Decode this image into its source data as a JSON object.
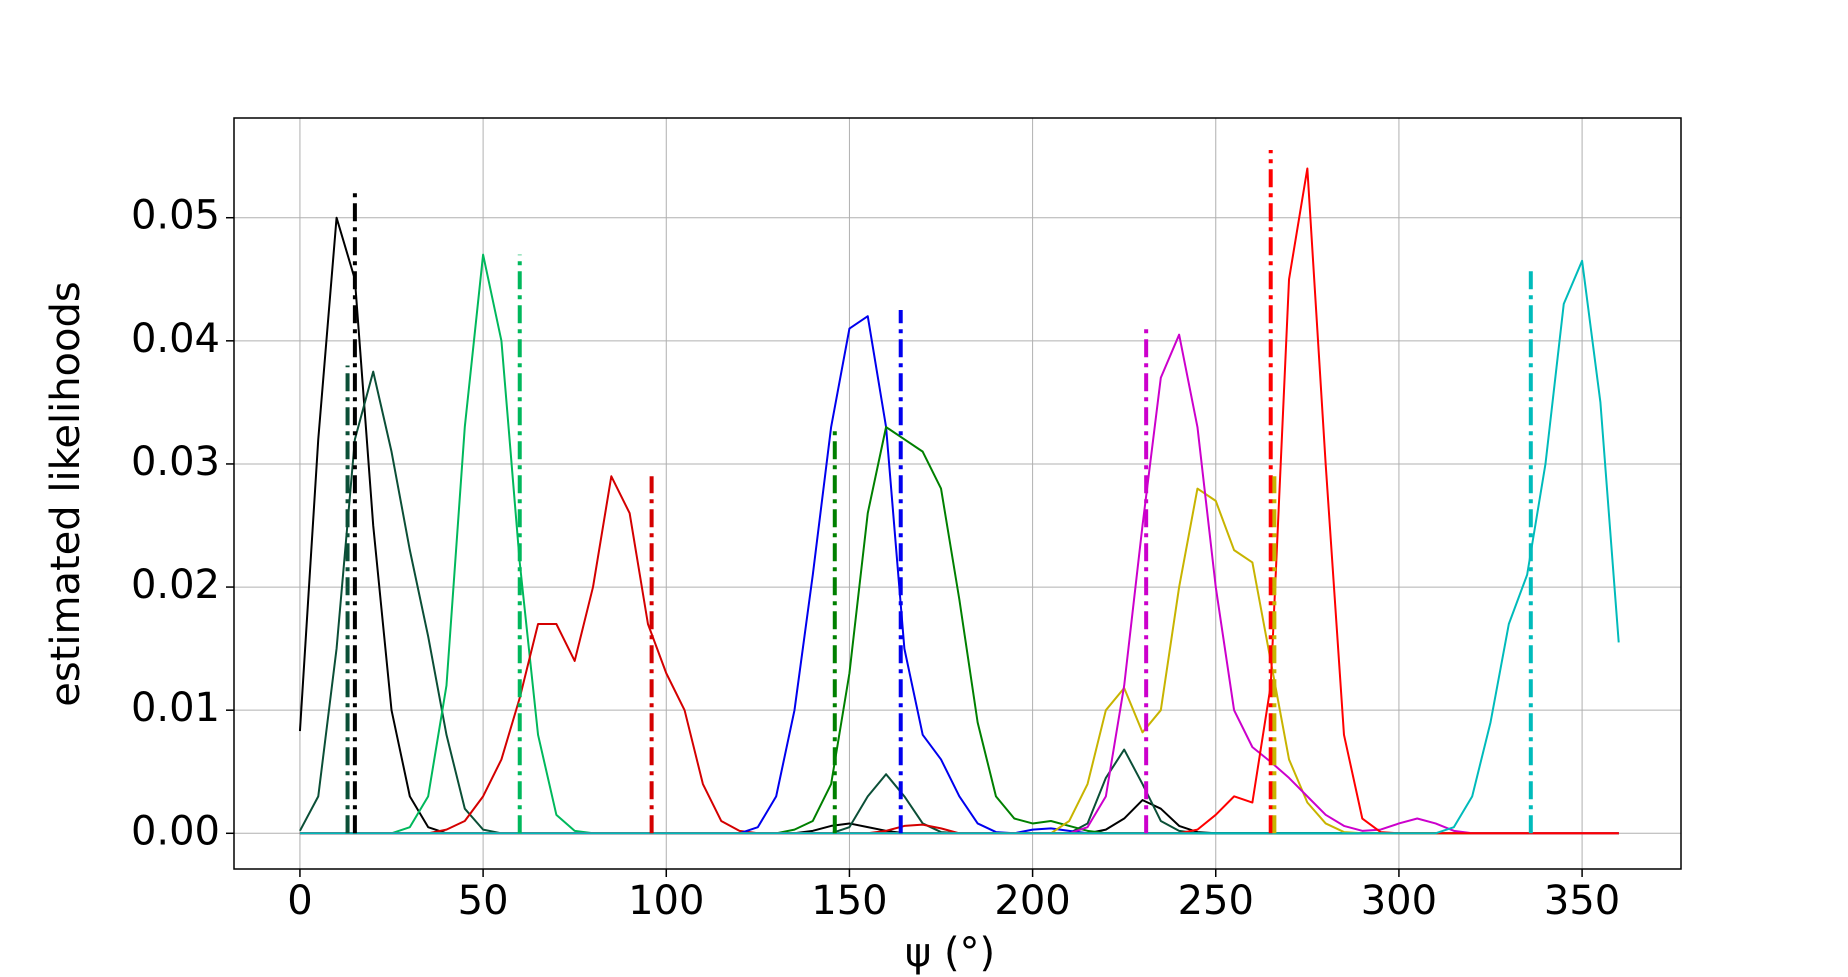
{
  "chart_data": {
    "type": "line",
    "xlabel": "ψ (°)",
    "ylabel": "estimated likelihoods",
    "xlim": [
      -18,
      377
    ],
    "ylim": [
      -0.0029,
      0.0581
    ],
    "xticks": [
      0,
      50,
      100,
      150,
      200,
      250,
      300,
      350
    ],
    "yticks": [
      {
        "value": 0,
        "label": "0.00"
      },
      0.01,
      0.02,
      0.03,
      0.04,
      0.05
    ],
    "grid": true,
    "x": [
      0,
      5,
      10,
      15,
      20,
      25,
      30,
      35,
      40,
      45,
      50,
      55,
      60,
      65,
      70,
      75,
      80,
      85,
      90,
      95,
      100,
      105,
      110,
      115,
      120,
      125,
      130,
      135,
      140,
      145,
      150,
      155,
      160,
      165,
      170,
      175,
      180,
      185,
      190,
      195,
      200,
      205,
      210,
      215,
      220,
      225,
      230,
      235,
      240,
      245,
      250,
      255,
      260,
      265,
      270,
      275,
      280,
      285,
      290,
      295,
      300,
      305,
      310,
      315,
      320,
      325,
      330,
      335,
      340,
      345,
      350,
      355,
      360
    ],
    "series": [
      {
        "color": "#000000",
        "values": [
          0.0083,
          0.032,
          0.05,
          0.045,
          0.025,
          0.01,
          0.003,
          0.0005,
          0,
          0,
          0,
          0,
          0,
          0,
          0,
          0,
          0,
          0,
          0,
          0,
          0,
          0,
          0,
          0,
          0,
          0,
          0,
          0,
          0.0002,
          0.0006,
          0.0008,
          0.0005,
          0.0002,
          0,
          0,
          0,
          0,
          0,
          0,
          0,
          0,
          0,
          0,
          0,
          0.0003,
          0.0012,
          0.0027,
          0.002,
          0.0006,
          0.0001,
          0,
          0,
          0,
          0,
          0,
          0,
          0,
          0,
          0,
          0,
          0,
          0,
          0,
          0,
          0,
          0,
          0,
          0,
          0,
          0,
          0,
          0,
          0
        ]
      },
      {
        "color": "#0b4f37",
        "values": [
          0.0002,
          0.003,
          0.015,
          0.032,
          0.0375,
          0.031,
          0.023,
          0.016,
          0.008,
          0.002,
          0.0003,
          0,
          0,
          0,
          0,
          0,
          0,
          0,
          0,
          0,
          0,
          0,
          0,
          0,
          0,
          0,
          0,
          0,
          0,
          0,
          0.0005,
          0.003,
          0.0048,
          0.003,
          0.0008,
          0.0001,
          0,
          0,
          0,
          0,
          0,
          0,
          0,
          0.0008,
          0.0045,
          0.0068,
          0.004,
          0.001,
          0.0002,
          0,
          0,
          0,
          0,
          0,
          0,
          0,
          0,
          0,
          0,
          0,
          0,
          0,
          0,
          0,
          0,
          0,
          0,
          0,
          0,
          0,
          0,
          0,
          0
        ]
      },
      {
        "color": "#00b85c",
        "values": [
          0,
          0,
          0,
          0,
          0,
          0,
          0.0005,
          0.003,
          0.012,
          0.033,
          0.047,
          0.04,
          0.022,
          0.008,
          0.0015,
          0.0002,
          0,
          0,
          0,
          0,
          0,
          0,
          0,
          0,
          0,
          0,
          0,
          0,
          0,
          0,
          0,
          0,
          0,
          0,
          0,
          0,
          0,
          0,
          0,
          0,
          0,
          0,
          0,
          0,
          0,
          0,
          0,
          0,
          0,
          0,
          0,
          0,
          0,
          0,
          0,
          0,
          0,
          0,
          0,
          0,
          0,
          0,
          0,
          0,
          0,
          0,
          0,
          0,
          0,
          0,
          0,
          0,
          0
        ]
      },
      {
        "color": "#d40000",
        "values": [
          0,
          0,
          0,
          0,
          0,
          0,
          0,
          0,
          0.0003,
          0.001,
          0.003,
          0.006,
          0.011,
          0.017,
          0.017,
          0.014,
          0.02,
          0.029,
          0.026,
          0.017,
          0.013,
          0.01,
          0.004,
          0.001,
          0.0002,
          0,
          0,
          0,
          0,
          0,
          0,
          0,
          0.0002,
          0.0006,
          0.0007,
          0.0004,
          0,
          0,
          0,
          0,
          0,
          0,
          0,
          0,
          0,
          0,
          0,
          0,
          0,
          0,
          0,
          0,
          0,
          0,
          0,
          0,
          0,
          0,
          0,
          0,
          0,
          0,
          0,
          0,
          0,
          0,
          0,
          0,
          0,
          0,
          0,
          0,
          0
        ]
      },
      {
        "color": "#0000ee",
        "values": [
          0,
          0,
          0,
          0,
          0,
          0,
          0,
          0,
          0,
          0,
          0,
          0,
          0,
          0,
          0,
          0,
          0,
          0,
          0,
          0,
          0,
          0,
          0,
          0,
          0,
          0.0005,
          0.003,
          0.01,
          0.021,
          0.033,
          0.041,
          0.042,
          0.033,
          0.015,
          0.008,
          0.006,
          0.003,
          0.0008,
          0.0001,
          0,
          0.0003,
          0.0004,
          0.0002,
          0,
          0,
          0,
          0,
          0,
          0,
          0,
          0,
          0,
          0,
          0,
          0,
          0,
          0,
          0,
          0,
          0,
          0,
          0,
          0,
          0,
          0,
          0,
          0,
          0,
          0,
          0,
          0,
          0,
          0
        ]
      },
      {
        "color": "#008000",
        "values": [
          0,
          0,
          0,
          0,
          0,
          0,
          0,
          0,
          0,
          0,
          0,
          0,
          0,
          0,
          0,
          0,
          0,
          0,
          0,
          0,
          0,
          0,
          0,
          0,
          0,
          0,
          0,
          0.0003,
          0.001,
          0.004,
          0.013,
          0.026,
          0.033,
          0.032,
          0.031,
          0.028,
          0.019,
          0.009,
          0.003,
          0.0012,
          0.0008,
          0.001,
          0.0006,
          0.0002,
          0,
          0,
          0,
          0,
          0,
          0,
          0,
          0,
          0,
          0,
          0,
          0,
          0,
          0,
          0,
          0,
          0,
          0,
          0,
          0,
          0,
          0,
          0,
          0,
          0,
          0,
          0,
          0,
          0
        ]
      },
      {
        "color": "#c8b400",
        "values": [
          0,
          0,
          0,
          0,
          0,
          0,
          0,
          0,
          0,
          0,
          0,
          0,
          0,
          0,
          0,
          0,
          0,
          0,
          0,
          0,
          0,
          0,
          0,
          0,
          0,
          0,
          0,
          0,
          0,
          0,
          0,
          0,
          0,
          0,
          0,
          0,
          0,
          0,
          0,
          0,
          0,
          0,
          0.001,
          0.004,
          0.01,
          0.0118,
          0.0082,
          0.01,
          0.02,
          0.028,
          0.027,
          0.023,
          0.022,
          0.014,
          0.006,
          0.0025,
          0.0008,
          0.0001,
          0,
          0,
          0,
          0,
          0,
          0,
          0,
          0,
          0,
          0,
          0,
          0,
          0,
          0,
          0
        ]
      },
      {
        "color": "#cc00cc",
        "values": [
          0,
          0,
          0,
          0,
          0,
          0,
          0,
          0,
          0,
          0,
          0,
          0,
          0,
          0,
          0,
          0,
          0,
          0,
          0,
          0,
          0,
          0,
          0,
          0,
          0,
          0,
          0,
          0,
          0,
          0,
          0,
          0,
          0,
          0,
          0,
          0,
          0,
          0,
          0,
          0,
          0,
          0,
          0,
          0.0005,
          0.003,
          0.012,
          0.025,
          0.037,
          0.0405,
          0.033,
          0.02,
          0.01,
          0.007,
          0.0058,
          0.0045,
          0.003,
          0.0015,
          0.0006,
          0.0002,
          0.0003,
          0.0008,
          0.0012,
          0.0008,
          0.0002,
          0,
          0,
          0,
          0,
          0,
          0,
          0,
          0,
          0
        ]
      },
      {
        "color": "#ff0000",
        "values": [
          0,
          0,
          0,
          0,
          0,
          0,
          0,
          0,
          0,
          0,
          0,
          0,
          0,
          0,
          0,
          0,
          0,
          0,
          0,
          0,
          0,
          0,
          0,
          0,
          0,
          0,
          0,
          0,
          0,
          0,
          0,
          0,
          0,
          0,
          0,
          0,
          0,
          0,
          0,
          0,
          0,
          0,
          0,
          0,
          0,
          0,
          0,
          0,
          0,
          0.0003,
          0.0015,
          0.003,
          0.0025,
          0.012,
          0.045,
          0.054,
          0.03,
          0.008,
          0.0012,
          0.0001,
          0,
          0,
          0,
          0,
          0,
          0,
          0,
          0,
          0,
          0,
          0,
          0,
          0
        ]
      },
      {
        "color": "#00bbbb",
        "values": [
          0,
          0,
          0,
          0,
          0,
          0,
          0,
          0,
          0,
          0,
          0,
          0,
          0,
          0,
          0,
          0,
          0,
          0,
          0,
          0,
          0,
          0,
          0,
          0,
          0,
          0,
          0,
          0,
          0,
          0,
          0,
          0,
          0,
          0,
          0,
          0,
          0,
          0,
          0,
          0,
          0,
          0,
          0,
          0,
          0,
          0,
          0,
          0,
          0,
          0,
          0,
          0,
          0,
          0,
          0,
          0,
          0,
          0,
          0,
          0,
          0,
          0,
          0,
          0.0005,
          0.003,
          0.009,
          0.017,
          0.021,
          0.03,
          0.043,
          0.0465,
          0.035,
          0.0155
        ]
      }
    ],
    "vlines": [
      {
        "x": 13,
        "top": 0.038,
        "color": "#0b4f37"
      },
      {
        "x": 15,
        "top": 0.052,
        "color": "#000000"
      },
      {
        "x": 60,
        "top": 0.047,
        "color": "#00b85c"
      },
      {
        "x": 96,
        "top": 0.029,
        "color": "#d40000"
      },
      {
        "x": 146,
        "top": 0.033,
        "color": "#008000"
      },
      {
        "x": 164,
        "top": 0.0425,
        "color": "#0000ee"
      },
      {
        "x": 231,
        "top": 0.041,
        "color": "#cc00cc"
      },
      {
        "x": 265,
        "top": 0.0555,
        "color": "#ff0000"
      },
      {
        "x": 266,
        "top": 0.029,
        "color": "#c8b400"
      },
      {
        "x": 336,
        "top": 0.046,
        "color": "#00bbbb"
      }
    ]
  }
}
